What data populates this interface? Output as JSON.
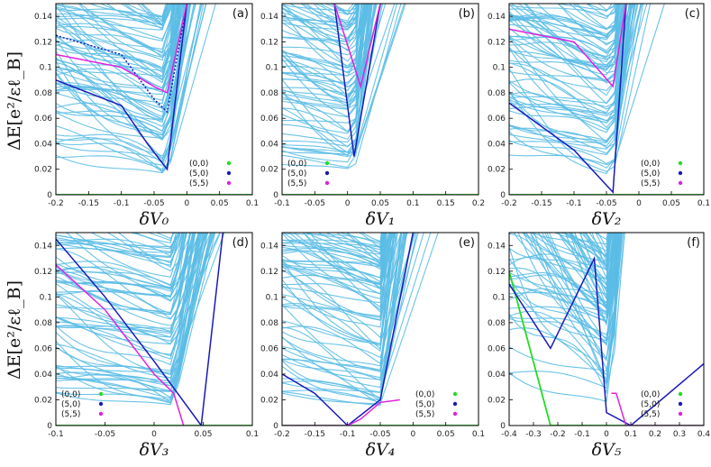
{
  "figure": {
    "ylabel": "ΔE[e²/εℓ_B]",
    "legend": [
      {
        "label": "(0,0)",
        "color": "#22dd22"
      },
      {
        "label": "(5,0)",
        "color": "#1a1ab8"
      },
      {
        "label": "(5,5)",
        "color": "#e020e0"
      }
    ],
    "colors": {
      "bulk": "#5bbde6",
      "highlight_blue": "#1a1ab8",
      "highlight_magenta": "#e020e0",
      "highlight_green": "#22dd22"
    }
  },
  "chart_data": [
    {
      "type": "line",
      "panel": "(a)",
      "xlabel": "δV₀",
      "xlim": [
        -0.2,
        0.1
      ],
      "ylim": [
        0,
        0.15
      ],
      "xticks": [
        "-0.2",
        "-0.15",
        "-0.1",
        "-0.05",
        "0",
        "0.05",
        "0.1"
      ],
      "yticks": [
        "0",
        "0.02",
        "0.04",
        "0.06",
        "0.08",
        "0.1",
        "0.12",
        "0.14"
      ],
      "minimum_x": -0.03,
      "series": [
        {
          "name": "(0,0)",
          "x": [
            -0.2,
            0.1
          ],
          "y": [
            0,
            0
          ]
        },
        {
          "name": "(5,0)",
          "x": [
            -0.2,
            -0.1,
            -0.06,
            -0.03,
            0.0
          ],
          "y": [
            0.09,
            0.07,
            0.04,
            0.02,
            0.15
          ]
        },
        {
          "name": "(5,0)",
          "x": [
            -0.2,
            -0.1,
            -0.05,
            -0.03,
            0.0
          ],
          "y": [
            0.125,
            0.11,
            0.075,
            0.065,
            0.15
          ]
        },
        {
          "name": "(5,5)",
          "x": [
            -0.2,
            -0.1,
            -0.05,
            -0.03,
            0.0
          ],
          "y": [
            0.11,
            0.1,
            0.085,
            0.08,
            0.15
          ]
        }
      ],
      "legend_position": "bottom-right"
    },
    {
      "type": "line",
      "panel": "(b)",
      "xlabel": "δV₁",
      "xlim": [
        -0.1,
        0.2
      ],
      "ylim": [
        0,
        0.15
      ],
      "xticks": [
        "-0.1",
        "-0.05",
        "0",
        "0.05",
        "0.1",
        "0.15",
        "0.2"
      ],
      "yticks": [
        "0",
        "0.02",
        "0.04",
        "0.06",
        "0.08",
        "0.1",
        "0.12",
        "0.14"
      ],
      "minimum_x": 0.01,
      "series": [
        {
          "name": "(0,0)",
          "x": [
            -0.1,
            0.2
          ],
          "y": [
            0,
            0
          ]
        },
        {
          "name": "(5,0)",
          "x": [
            -0.02,
            0.01,
            0.05
          ],
          "y": [
            0.15,
            0.03,
            0.15
          ]
        },
        {
          "name": "(5,5)",
          "x": [
            -0.02,
            0.02,
            0.05
          ],
          "y": [
            0.15,
            0.085,
            0.15
          ]
        }
      ],
      "legend_position": "bottom-left"
    },
    {
      "type": "line",
      "panel": "(c)",
      "xlabel": "δV₂",
      "xlim": [
        -0.2,
        0.1
      ],
      "ylim": [
        0,
        0.15
      ],
      "xticks": [
        "-0.2",
        "-0.15",
        "-0.1",
        "-0.05",
        "0",
        "0.05",
        "0.1"
      ],
      "yticks": [
        "0",
        "0.02",
        "0.04",
        "0.06",
        "0.08",
        "0.1",
        "0.12",
        "0.14"
      ],
      "minimum_x": -0.04,
      "series": [
        {
          "name": "(0,0)",
          "x": [
            -0.2,
            0.1
          ],
          "y": [
            0,
            0
          ]
        },
        {
          "name": "(5,0)",
          "x": [
            -0.2,
            -0.1,
            -0.04,
            -0.02
          ],
          "y": [
            0.072,
            0.035,
            0.002,
            0.15
          ]
        },
        {
          "name": "(5,5)",
          "x": [
            -0.2,
            -0.1,
            -0.04,
            -0.02
          ],
          "y": [
            0.13,
            0.12,
            0.085,
            0.15
          ]
        }
      ],
      "legend_position": "bottom-right"
    },
    {
      "type": "line",
      "panel": "(d)",
      "xlabel": "δV₃",
      "xlim": [
        -0.1,
        0.1
      ],
      "ylim": [
        0,
        0.15
      ],
      "xticks": [
        "-0.1",
        "-0.05",
        "0",
        "0.05",
        "0.1"
      ],
      "yticks": [
        "0",
        "0.02",
        "0.04",
        "0.06",
        "0.08",
        "0.1",
        "0.12",
        "0.14"
      ],
      "minimum_x": 0.02,
      "series": [
        {
          "name": "(0,0)",
          "x": [
            -0.1,
            0.1
          ],
          "y": [
            0,
            0
          ]
        },
        {
          "name": "(5,0)",
          "x": [
            -0.1,
            -0.05,
            0.0,
            0.048,
            0.07
          ],
          "y": [
            0.145,
            0.1,
            0.05,
            0.0,
            0.15
          ]
        },
        {
          "name": "(5,5)",
          "x": [
            -0.1,
            -0.05,
            0.0,
            0.02,
            0.03
          ],
          "y": [
            0.125,
            0.09,
            0.04,
            0.025,
            0.0
          ]
        }
      ],
      "legend_position": "bottom-left"
    },
    {
      "type": "line",
      "panel": "(e)",
      "xlabel": "δV₄",
      "xlim": [
        -0.2,
        0.1
      ],
      "ylim": [
        0,
        0.15
      ],
      "xticks": [
        "-0.2",
        "-0.15",
        "-0.1",
        "-0.05",
        "0",
        "0.05",
        "0.1"
      ],
      "yticks": [
        "0",
        "0.02",
        "0.04",
        "0.06",
        "0.08",
        "0.1",
        "0.12",
        "0.14"
      ],
      "minimum_x": -0.05,
      "series": [
        {
          "name": "(0,0)",
          "x": [
            -0.2,
            0.1
          ],
          "y": [
            0,
            0
          ]
        },
        {
          "name": "(5,0)",
          "x": [
            -0.2,
            -0.15,
            -0.1,
            -0.05,
            0.0
          ],
          "y": [
            0.04,
            0.025,
            0.0,
            0.02,
            0.15
          ]
        },
        {
          "name": "(5,5)",
          "x": [
            -0.2,
            -0.1,
            -0.08,
            -0.05,
            -0.02
          ],
          "y": [
            0.0,
            0.0,
            0.005,
            0.018,
            0.02
          ]
        }
      ],
      "legend_position": "bottom-right"
    },
    {
      "type": "line",
      "panel": "(f)",
      "xlabel": "δV₅",
      "xlim": [
        -0.4,
        0.4
      ],
      "ylim": [
        0,
        0.15
      ],
      "xticks": [
        "-0.4",
        "-0.3",
        "-0.2",
        "-0.1",
        "0",
        "0.1",
        "0.2",
        "0.3",
        "0.4"
      ],
      "yticks": [
        "0",
        "0.02",
        "0.04",
        "0.06",
        "0.08",
        "0.1",
        "0.12",
        "0.14"
      ],
      "minimum_x": 0.02,
      "series": [
        {
          "name": "(0,0)",
          "x": [
            -0.4,
            -0.23,
            0.4
          ],
          "y": [
            0.12,
            0.0,
            0.0
          ]
        },
        {
          "name": "(5,0)",
          "x": [
            -0.4,
            -0.23,
            -0.05,
            0.0,
            0.1,
            0.4
          ],
          "y": [
            0.11,
            0.06,
            0.13,
            0.01,
            0.0,
            0.048
          ]
        },
        {
          "name": "(5,5)",
          "x": [
            0.02,
            0.04,
            0.08,
            0.4
          ],
          "y": [
            0.025,
            0.025,
            0.0,
            0.0
          ]
        }
      ],
      "legend_position": "bottom-right"
    }
  ]
}
